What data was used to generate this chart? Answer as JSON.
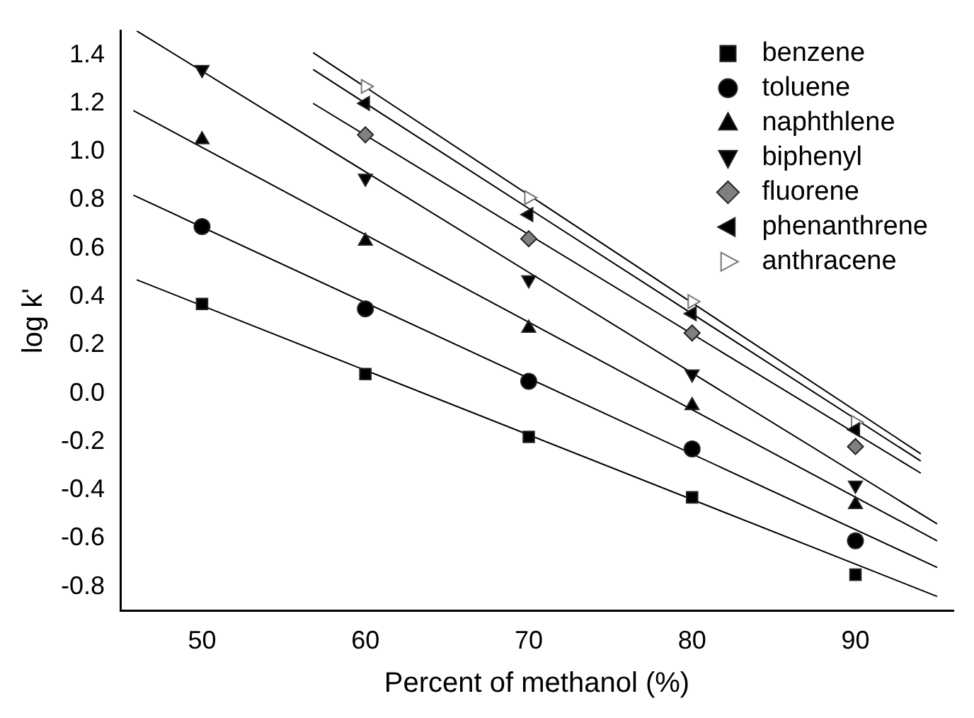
{
  "chart_data": {
    "type": "scatter",
    "xlabel": "Percent of methanol (%)",
    "ylabel": "log k'",
    "xlim": [
      45,
      96
    ],
    "ylim": [
      -0.9,
      1.5
    ],
    "xticks": [
      50,
      60,
      70,
      80,
      90
    ],
    "yticks": [
      -0.8,
      -0.6,
      -0.4,
      -0.2,
      {
        "value": 0,
        "label": "0.0"
      },
      0.2,
      0.4,
      0.6,
      0.8,
      {
        "value": 1,
        "label": "1.0"
      },
      1.2,
      1.4
    ],
    "grid": false,
    "legend": "top right",
    "series": [
      {
        "name": "benzene",
        "color": "#000000",
        "marker": "square",
        "x": [
          50,
          60,
          70,
          80,
          90
        ],
        "values": [
          0.37,
          0.08,
          -0.18,
          -0.43,
          -0.75
        ]
      },
      {
        "name": "toluene",
        "color": "#000000",
        "marker": "circle",
        "x": [
          50,
          60,
          70,
          80,
          90
        ],
        "values": [
          0.69,
          0.35,
          0.05,
          -0.23,
          -0.61
        ]
      },
      {
        "name": "naphthlene",
        "color": "#000000",
        "marker": "triangle",
        "x": [
          50,
          60,
          70,
          80,
          90
        ],
        "values": [
          1.05,
          0.63,
          0.27,
          -0.05,
          -0.46
        ]
      },
      {
        "name": "biphenyl",
        "color": "#000000",
        "marker": "triangle-down",
        "x": [
          50,
          60,
          70,
          80,
          90
        ],
        "values": [
          1.34,
          0.89,
          0.47,
          0.08,
          -0.38
        ]
      },
      {
        "name": "fluorene",
        "color": "#808080",
        "marker": "diamond",
        "x": [
          60,
          70,
          80,
          90
        ],
        "values": [
          1.07,
          0.64,
          0.25,
          -0.22
        ]
      },
      {
        "name": "phenanthrene",
        "color": "#000000",
        "marker": "triangle-left",
        "x": [
          60,
          70,
          80,
          90
        ],
        "values": [
          1.2,
          0.74,
          0.33,
          -0.15
        ]
      },
      {
        "name": "anthracene",
        "color": "#ffffff",
        "marker": "triangle-right",
        "x": [
          60,
          70,
          80,
          90
        ],
        "values": [
          1.27,
          0.81,
          0.38,
          -0.12
        ]
      },
      {
        "type": "line",
        "color": "#000000",
        "marker": "none",
        "x": [
          46,
          95
        ],
        "values": [
          0.47,
          -0.84
        ]
      },
      {
        "type": "line",
        "color": "#000000",
        "marker": "none",
        "x": [
          45.8,
          95
        ],
        "values": [
          0.82,
          -0.72
        ]
      },
      {
        "type": "line",
        "color": "#000000",
        "marker": "none",
        "x": [
          45.8,
          95
        ],
        "values": [
          1.17,
          -0.61
        ]
      },
      {
        "type": "line",
        "color": "#000000",
        "marker": "none",
        "x": [
          46,
          95
        ],
        "values": [
          1.5,
          -0.54
        ]
      },
      {
        "type": "line",
        "color": "#000000",
        "marker": "none",
        "x": [
          56.8,
          94
        ],
        "values": [
          1.2,
          -0.33
        ]
      },
      {
        "type": "line",
        "color": "#000000",
        "marker": "none",
        "x": [
          56.8,
          94
        ],
        "values": [
          1.34,
          -0.28
        ]
      },
      {
        "type": "line",
        "color": "#000000",
        "marker": "none",
        "x": [
          56.8,
          94
        ],
        "values": [
          1.41,
          -0.25
        ]
      }
    ]
  }
}
